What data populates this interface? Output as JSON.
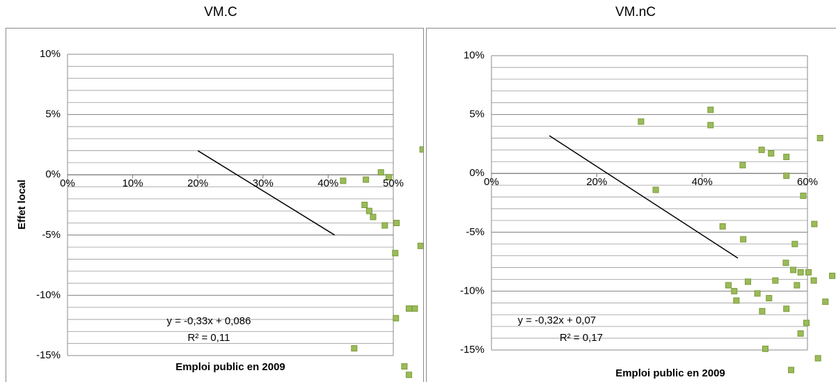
{
  "chart_data": [
    {
      "type": "scatter",
      "title": "VM.C",
      "x_label": "Emploi public en 2009",
      "y_label": "Effet local",
      "xlim": [
        0,
        50
      ],
      "xticks": [
        {
          "value": 0,
          "label": "0%"
        },
        {
          "value": 10,
          "label": "10%"
        },
        {
          "value": 20,
          "label": "20%"
        },
        {
          "value": 30,
          "label": "30%"
        },
        {
          "value": 40,
          "label": "40%"
        },
        {
          "value": 50,
          "label": "50%"
        }
      ],
      "ylim": [
        -15,
        10
      ],
      "yticks": [
        {
          "value": -15,
          "label": "-15%"
        },
        {
          "value": -10,
          "label": "-10%"
        },
        {
          "value": -5,
          "label": "-5%"
        },
        {
          "value": 0,
          "label": "0%"
        },
        {
          "value": 5,
          "label": "5%"
        },
        {
          "value": 10,
          "label": "10%"
        }
      ],
      "grid": true,
      "minor_grid_step": 1,
      "series": [
        {
          "color": "#9bbb59",
          "x": [
            42.3,
            45.8,
            48.1,
            49.3,
            45.6,
            46.3,
            46.9,
            48.7,
            50.5,
            50.3,
            54.5,
            54.2,
            52.4,
            53.3,
            50.4,
            52.4,
            51.7,
            44.0
          ],
          "values": [
            -0.5,
            -0.4,
            0.2,
            -0.2,
            -2.5,
            -3.0,
            -3.5,
            -4.2,
            -4.0,
            -6.5,
            2.1,
            -5.9,
            -11.1,
            -11.1,
            -11.9,
            -16.6,
            -15.9,
            -14.4
          ]
        }
      ],
      "trendline": {
        "color": "#000000",
        "x": [
          20,
          41
        ],
        "values": [
          2,
          -5
        ]
      },
      "annotations": [
        "y = -0,33x + 0,086",
        "R² = 0,11"
      ]
    },
    {
      "type": "scatter",
      "title": "VM.nC",
      "x_label": "Emploi public en 2009",
      "xlim": [
        0,
        60
      ],
      "xticks": [
        {
          "value": 0,
          "label": "0%"
        },
        {
          "value": 20,
          "label": "20%"
        },
        {
          "value": 40,
          "label": "40%"
        },
        {
          "value": 60,
          "label": "60%"
        }
      ],
      "ylim": [
        -15,
        10
      ],
      "yticks": [
        {
          "value": -15,
          "label": "-15%"
        },
        {
          "value": -10,
          "label": "-10%"
        },
        {
          "value": -5,
          "label": "-5%"
        },
        {
          "value": 0,
          "label": "0%"
        },
        {
          "value": 5,
          "label": "5%"
        },
        {
          "value": 10,
          "label": "10%"
        }
      ],
      "grid": true,
      "minor_grid_step": 1,
      "series": [
        {
          "color": "#9bbb59",
          "x": [
            28.4,
            41.6,
            41.6,
            47.7,
            51.3,
            53.1,
            56.0,
            56.0,
            59.2,
            62.4,
            43.9,
            47.8,
            57.6,
            61.3,
            55.9,
            57.3,
            58.7,
            60.2,
            58.0,
            61.2,
            53.9,
            48.7,
            45.0,
            46.1,
            50.5,
            46.5,
            52.7,
            56.0,
            51.4,
            59.8,
            52.0,
            58.7,
            62.0,
            64.7,
            63.4,
            31.2,
            56.9
          ],
          "values": [
            4.4,
            5.4,
            4.1,
            0.7,
            2.0,
            1.7,
            1.4,
            -0.2,
            -1.9,
            3.0,
            -4.5,
            -5.6,
            -6.0,
            -4.3,
            -7.6,
            -8.2,
            -8.4,
            -8.4,
            -9.5,
            -9.1,
            -9.1,
            -9.2,
            -9.5,
            -10.0,
            -10.2,
            -10.8,
            -10.6,
            -11.5,
            -11.7,
            -12.7,
            -14.9,
            -13.6,
            -15.7,
            -8.7,
            -10.9,
            -1.4,
            -16.7
          ]
        }
      ],
      "trendline": {
        "color": "#000000",
        "x": [
          11,
          46.8
        ],
        "values": [
          3.2,
          -7.2
        ]
      },
      "annotations": [
        "y = -0,32x + 0,07",
        "R² = 0,17"
      ]
    }
  ]
}
